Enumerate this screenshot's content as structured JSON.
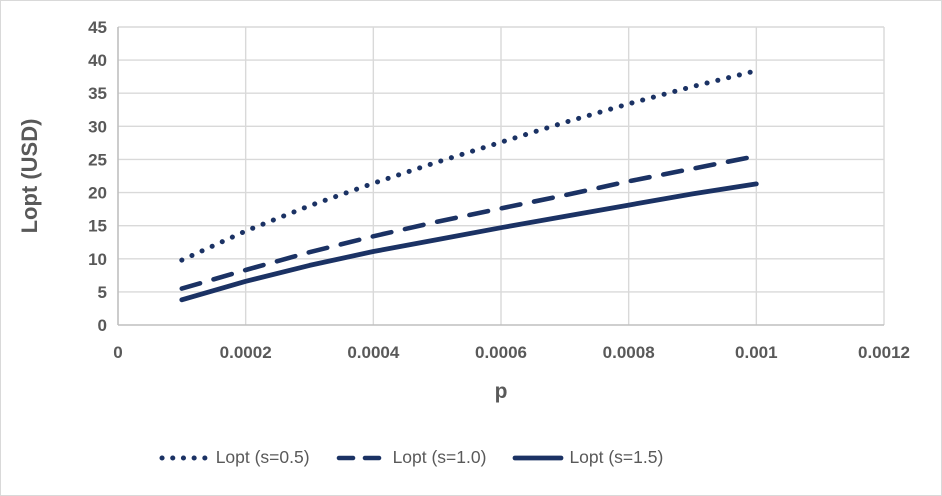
{
  "chart_data": {
    "type": "line",
    "xlabel": "p",
    "ylabel": "Lopt (USD)",
    "xlim": [
      0,
      0.0012
    ],
    "ylim": [
      0,
      45
    ],
    "x_ticks": [
      0,
      0.0002,
      0.0004,
      0.0006,
      0.0008,
      0.001,
      0.0012
    ],
    "x_tick_labels": [
      "0",
      "0.0002",
      "0.0004",
      "0.0006",
      "0.0008",
      "0.001",
      "0.0012"
    ],
    "y_ticks": [
      0,
      5,
      10,
      15,
      20,
      25,
      30,
      35,
      40,
      45
    ],
    "y_tick_labels": [
      "0",
      "5",
      "10",
      "15",
      "20",
      "25",
      "30",
      "35",
      "40",
      "45"
    ],
    "grid": true,
    "legend_position": "bottom",
    "x": [
      0.0001,
      0.0002,
      0.0003,
      0.0004,
      0.0005,
      0.0006,
      0.0007,
      0.0008,
      0.0009,
      0.001
    ],
    "series": [
      {
        "name": "Lopt (s=0.5)",
        "style": "dotted",
        "values": [
          9.8,
          14.2,
          18.0,
          21.4,
          24.6,
          27.6,
          30.6,
          33.4,
          36.0,
          38.4
        ]
      },
      {
        "name": "Lopt (s=1.0)",
        "style": "dashed",
        "values": [
          5.5,
          8.3,
          11.0,
          13.4,
          15.6,
          17.6,
          19.6,
          21.7,
          23.6,
          25.5
        ]
      },
      {
        "name": "Lopt (s=1.5)",
        "style": "solid",
        "values": [
          3.8,
          6.6,
          9.0,
          11.1,
          12.9,
          14.7,
          16.4,
          18.1,
          19.8,
          21.3
        ]
      }
    ],
    "colors": {
      "line": "#1b3264",
      "grid": "#d9d9d9",
      "axis": "#bfbfbf",
      "text": "#595959",
      "background": "#ffffff",
      "frame_border": "#d9d9d9"
    }
  }
}
